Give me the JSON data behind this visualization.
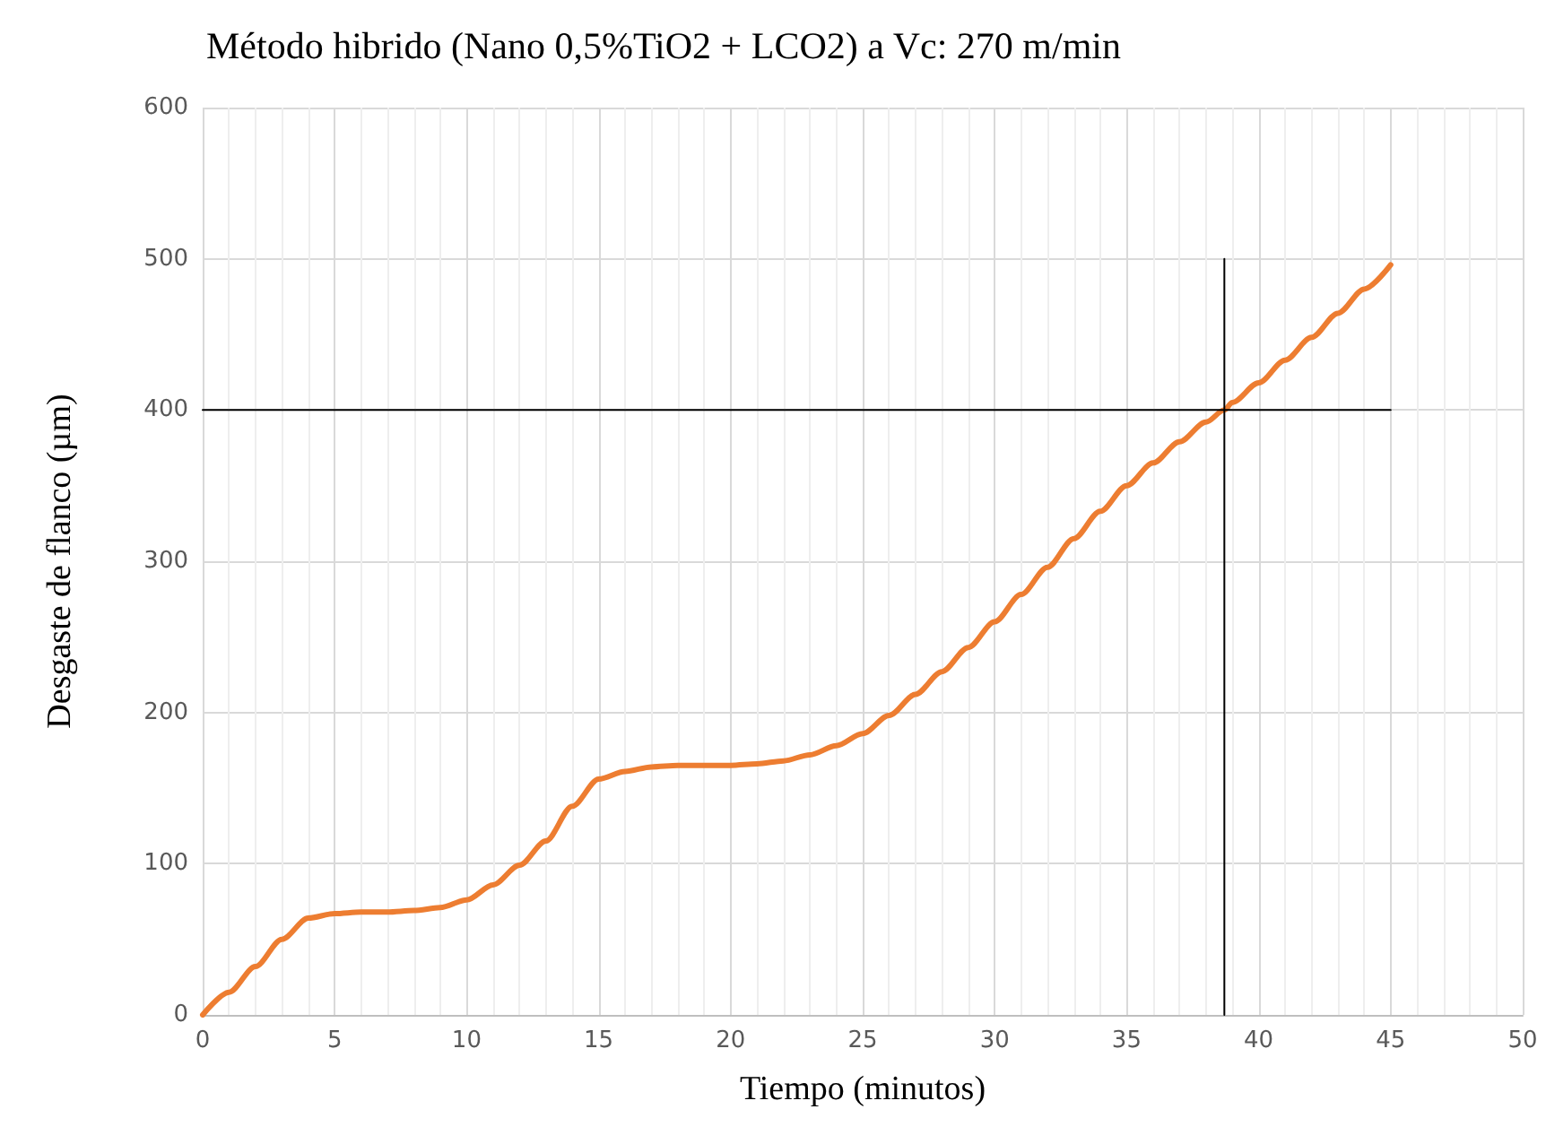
{
  "chart_data": {
    "type": "line",
    "title": "Método hibrido (Nano 0,5%TiO2 + LCO2) a Vc: 270 m/min",
    "xlabel": "Tiempo (minutos)",
    "ylabel": "Desgaste de flanco (µm)",
    "xlim": [
      0,
      50
    ],
    "xticks": [
      0,
      5,
      10,
      15,
      20,
      25,
      30,
      35,
      40,
      45,
      50
    ],
    "ylim": [
      0,
      600
    ],
    "yticks": [
      0,
      100,
      200,
      300,
      400,
      500,
      600
    ],
    "grid": true,
    "marker": "none",
    "line_style": "solid",
    "series": [
      {
        "color": "#ed7d31",
        "x": [
          0,
          1,
          2,
          3,
          4,
          5,
          6,
          7,
          8,
          9,
          10,
          11,
          12,
          13,
          14,
          15,
          16,
          17,
          18,
          19,
          20,
          21,
          22,
          23,
          24,
          25,
          26,
          27,
          28,
          29,
          30,
          31,
          32,
          33,
          34,
          35,
          36,
          37,
          38,
          38.7,
          39,
          40,
          41,
          42,
          43,
          44,
          45
        ],
        "values": [
          0,
          15,
          32,
          50,
          64,
          67,
          68,
          68,
          69,
          71,
          76,
          86,
          99,
          115,
          138,
          156,
          161,
          164,
          165,
          165,
          165,
          166,
          168,
          172,
          178,
          186,
          198,
          212,
          227,
          243,
          260,
          278,
          296,
          315,
          333,
          350,
          365,
          379,
          392,
          400,
          405,
          418,
          433,
          448,
          464,
          480,
          496
        ]
      },
      {
        "color": "#000000",
        "x": [
          0,
          45
        ],
        "values": [
          400,
          400
        ]
      },
      {
        "color": "#000000",
        "x": [
          38.7,
          38.7
        ],
        "values": [
          0,
          500
        ]
      }
    ]
  }
}
